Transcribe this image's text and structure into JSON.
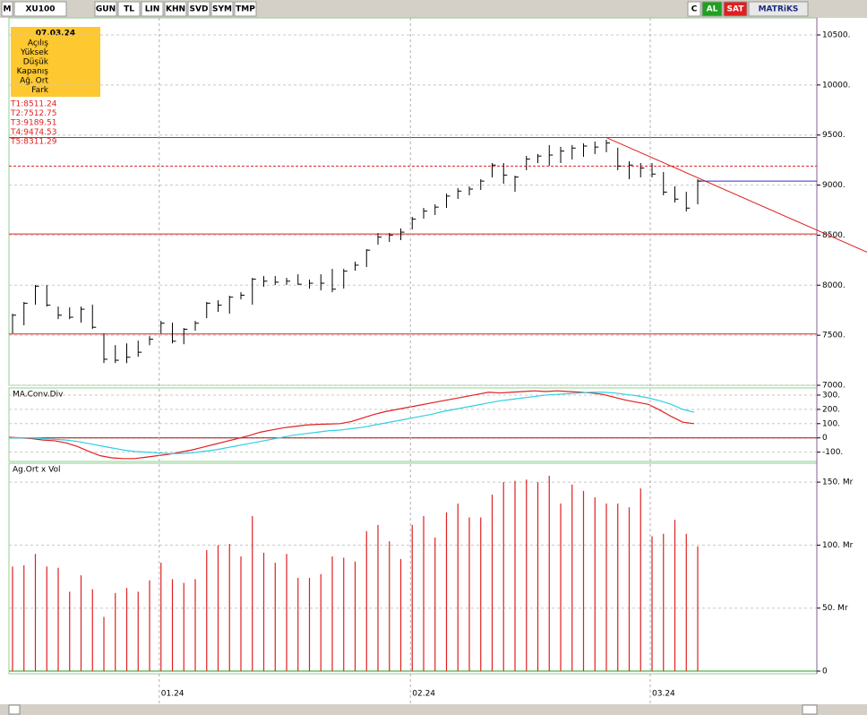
{
  "toolbar": {
    "left": [
      "M",
      "XU100",
      "GUN",
      "TL",
      "LIN",
      "KHN",
      "SVD",
      "SYM",
      "TMP"
    ],
    "right": [
      "C",
      "AL",
      "SAT",
      "MATRiKS"
    ]
  },
  "chart_data": [
    {
      "type": "ohlc",
      "color": "#000000",
      "info": {
        "date": "07.03.24",
        "fields": [
          "Açılış",
          "Yüksek",
          "Düşük",
          "Kapanış",
          "Ağ. Ort",
          "Fark"
        ]
      },
      "high": [
        7715,
        7832,
        8002,
        8002,
        7787,
        7778,
        7787,
        7805,
        7518,
        7401,
        7419,
        7446,
        7491,
        7643,
        7625,
        7572,
        7643,
        7832,
        7849,
        7894,
        7930,
        8073,
        8091,
        8091,
        8073,
        8109,
        8056,
        8109,
        8163,
        8163,
        8235,
        8360,
        8521,
        8521,
        8566,
        8683,
        8772,
        8808,
        8916,
        8970,
        8987,
        9059,
        9220,
        9220,
        9095,
        9292,
        9310,
        9400,
        9382,
        9400,
        9417,
        9435,
        9453,
        9373,
        9238,
        9220,
        9220,
        9131,
        8987,
        8934,
        9059
      ],
      "low": [
        7518,
        7599,
        7805,
        7787,
        7661,
        7661,
        7625,
        7563,
        7222,
        7222,
        7222,
        7285,
        7401,
        7518,
        7419,
        7410,
        7545,
        7670,
        7733,
        7715,
        7858,
        7805,
        7984,
        8002,
        8002,
        8002,
        7966,
        7948,
        7930,
        7966,
        8145,
        8181,
        8405,
        8432,
        8450,
        8557,
        8665,
        8701,
        8772,
        8862,
        8898,
        8952,
        9077,
        9014,
        8934,
        9149,
        9220,
        9193,
        9220,
        9256,
        9283,
        9310,
        9328,
        9149,
        9059,
        9077,
        9077,
        8898,
        8826,
        8737,
        8808
      ],
      "close": [
        7700,
        7820,
        7990,
        7800,
        7700,
        7680,
        7760,
        7580,
        7260,
        7250,
        7280,
        7330,
        7460,
        7620,
        7440,
        7560,
        7620,
        7820,
        7800,
        7880,
        7900,
        8060,
        8040,
        8030,
        8040,
        8010,
        8020,
        8020,
        7960,
        8140,
        8200,
        8350,
        8480,
        8500,
        8530,
        8660,
        8740,
        8780,
        8890,
        8940,
        8960,
        9040,
        9200,
        9100,
        9080,
        9260,
        9290,
        9300,
        9340,
        9370,
        9390,
        9380,
        9420,
        9190,
        9200,
        9170,
        9110,
        8930,
        8860,
        8770,
        9040
      ],
      "levels": [
        {
          "label": "T1:8511.24",
          "value": 8511.24,
          "line": "solid"
        },
        {
          "label": "T2:7512.75",
          "value": 7512.75,
          "line": "solid"
        },
        {
          "label": "T3:9189.51",
          "value": 9189.51,
          "line": "dashed"
        },
        {
          "label": "T4:9474.53",
          "value": 9474.53,
          "line": "solid"
        },
        {
          "label": "T5:8311.29",
          "value": 8311.29,
          "line": null
        }
      ],
      "level_color": "#e02020",
      "trendline": {
        "start": 9474.53,
        "end": 8330,
        "color": "#e02020"
      },
      "last_close_color": "#3030c0",
      "ylim": [
        7000,
        10670
      ],
      "yticks": [
        {
          "value": 10500,
          "label": "10500."
        },
        {
          "value": 10000,
          "label": "10000."
        },
        {
          "value": 9500,
          "label": "9500."
        },
        {
          "value": 9000,
          "label": "9000."
        },
        {
          "value": 8500,
          "label": "8500."
        },
        {
          "value": 8000,
          "label": "8000."
        },
        {
          "value": 7500,
          "label": "7500."
        },
        {
          "value": 7000,
          "label": "7000."
        }
      ],
      "grid": true
    },
    {
      "type": "line",
      "title": "MA.Conv.Div",
      "series": [
        {
          "color": "#e02020",
          "values": [
            5,
            0,
            -5,
            -15,
            -20,
            -35,
            -60,
            -95,
            -125,
            -140,
            -145,
            -145,
            -135,
            -125,
            -115,
            -100,
            -85,
            -65,
            -45,
            -25,
            -5,
            15,
            40,
            55,
            70,
            80,
            90,
            95,
            97,
            100,
            115,
            140,
            165,
            185,
            200,
            215,
            230,
            245,
            260,
            275,
            290,
            305,
            320,
            315,
            320,
            325,
            330,
            325,
            330,
            325,
            320,
            315,
            305,
            285,
            265,
            250,
            235,
            195,
            150,
            110,
            100
          ]
        },
        {
          "color": "#30d0e0",
          "values": [
            0,
            0,
            0,
            -5,
            -10,
            -15,
            -25,
            -40,
            -55,
            -70,
            -85,
            -95,
            -100,
            -105,
            -110,
            -110,
            -105,
            -95,
            -85,
            -70,
            -55,
            -40,
            -25,
            -10,
            5,
            20,
            30,
            40,
            50,
            55,
            65,
            75,
            90,
            105,
            120,
            135,
            150,
            165,
            185,
            200,
            215,
            230,
            245,
            260,
            270,
            280,
            290,
            300,
            305,
            310,
            315,
            320,
            320,
            315,
            305,
            295,
            280,
            260,
            235,
            200,
            180
          ]
        }
      ],
      "zero_color": "#a01010",
      "ylim": [
        -165,
        350
      ],
      "yticks": [
        {
          "value": 300,
          "label": "300."
        },
        {
          "value": 200,
          "label": "200."
        },
        {
          "value": 100,
          "label": "100."
        },
        0,
        {
          "value": -100,
          "label": "-100."
        }
      ],
      "grid": true
    },
    {
      "type": "bar",
      "title": "Ag.Ort x Vol",
      "color": "#e02020",
      "base_color": "#20a020",
      "categories": [
        null,
        null,
        null,
        null,
        null,
        null,
        null,
        null,
        null,
        null,
        null,
        null,
        null,
        "01.24",
        null,
        null,
        null,
        null,
        null,
        null,
        null,
        null,
        null,
        null,
        null,
        null,
        null,
        null,
        null,
        null,
        null,
        null,
        null,
        null,
        null,
        "02.24",
        null,
        null,
        null,
        null,
        null,
        null,
        null,
        null,
        null,
        null,
        null,
        null,
        null,
        null,
        null,
        null,
        null,
        null,
        null,
        null,
        "03.24",
        null,
        null,
        null,
        null
      ],
      "values": [
        83,
        84,
        93,
        83,
        82,
        63,
        76,
        65,
        43,
        62,
        66,
        63,
        72,
        86,
        73,
        70,
        73,
        96,
        100,
        101,
        91,
        123,
        94,
        86,
        93,
        74,
        74,
        77,
        91,
        90,
        87,
        111,
        116,
        103,
        89,
        116,
        123,
        106,
        126,
        133,
        122,
        122,
        140,
        150,
        151,
        152,
        150,
        155,
        133,
        148,
        143,
        138,
        133,
        133,
        130,
        145,
        107,
        109,
        120,
        109,
        99
      ],
      "ylim": [
        0,
        165
      ],
      "yticks": [
        {
          "value": 150,
          "label": "150. Mr"
        },
        {
          "value": 100,
          "label": "100. Mr"
        },
        {
          "value": 50,
          "label": "50. Mr"
        },
        0
      ],
      "grid": true
    }
  ]
}
